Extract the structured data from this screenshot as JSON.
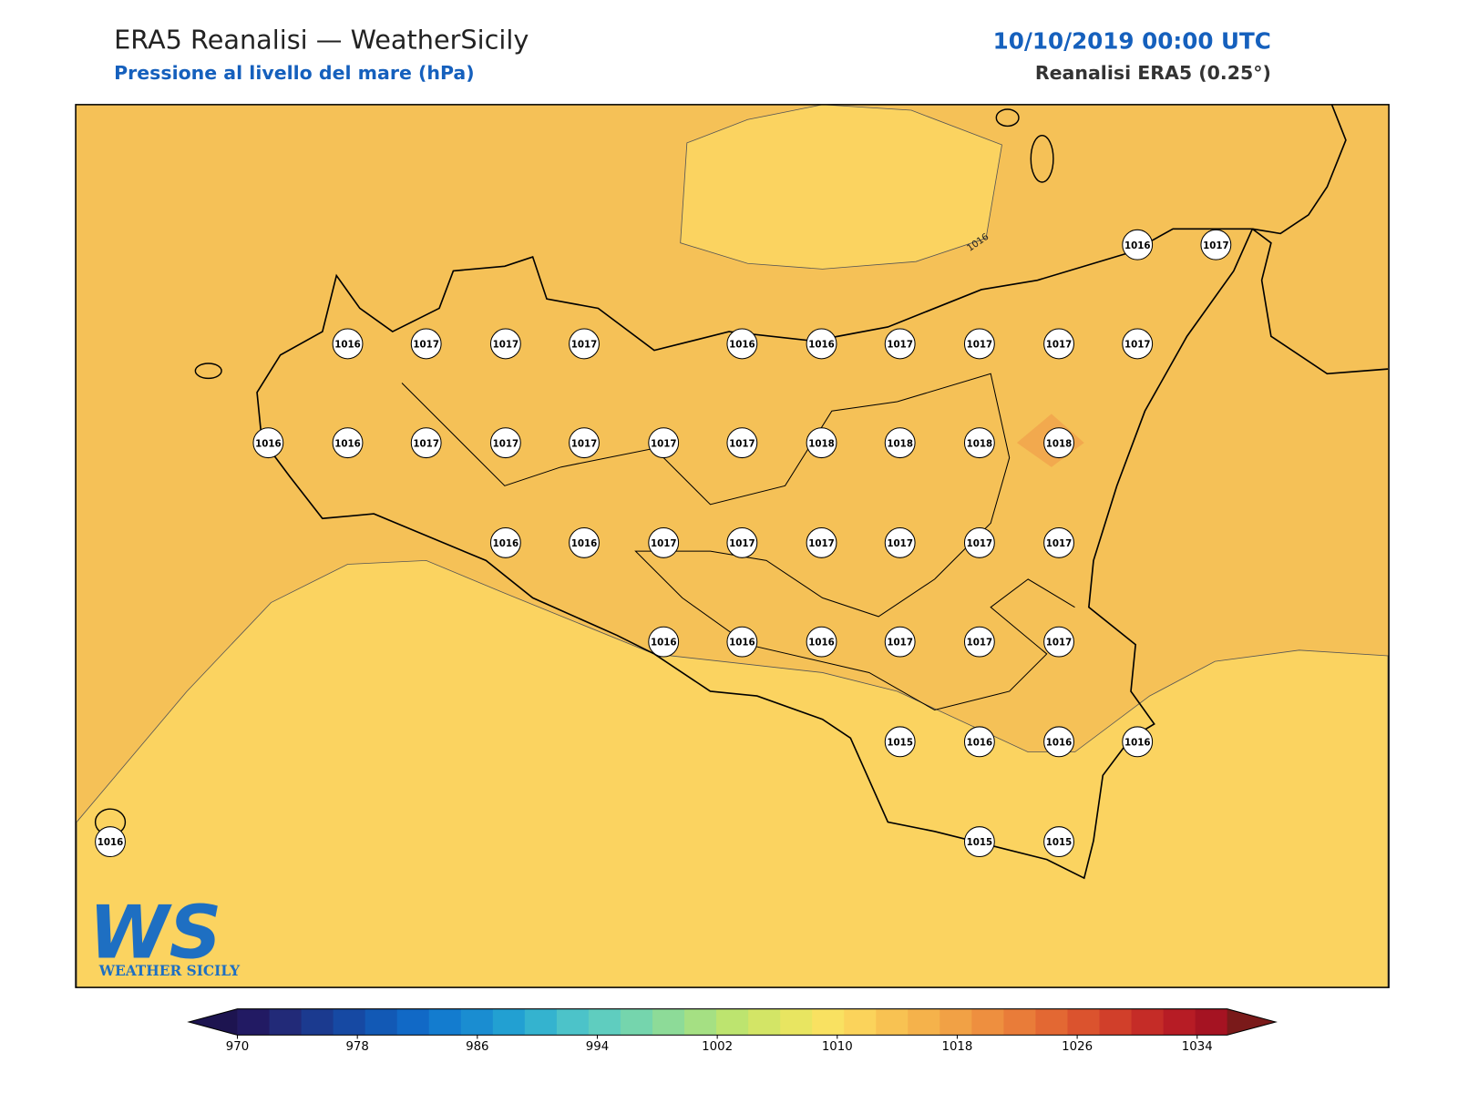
{
  "header": {
    "title": "ERA5 Reanalisi — WeatherSicily",
    "subtitle": "Pressione al livello del mare (hPa)",
    "datetime": "10/10/2019 00:00 UTC",
    "source": "Reanalisi ERA5 (0.25°)"
  },
  "map": {
    "contour_label": "1016",
    "stations": [
      1016,
      1017,
      1016,
      1017,
      1017,
      1017,
      1016,
      1016,
      1017,
      1017,
      1017,
      1017,
      1016,
      1016,
      1017,
      1017,
      1017,
      1017,
      1017,
      1018,
      1018,
      1018,
      1018,
      1016,
      1016,
      1017,
      1017,
      1017,
      1017,
      1017,
      1017,
      1016,
      1016,
      1016,
      1017,
      1017,
      1017,
      1015,
      1016,
      1016,
      1016,
      1016,
      1015,
      1015
    ]
  },
  "colorbar": {
    "ticks": [
      970,
      978,
      986,
      994,
      1002,
      1010,
      1018,
      1026,
      1034
    ],
    "lim": [
      970,
      1036
    ]
  },
  "logo": {
    "mark": "WS",
    "text": "WEATHER SICILY"
  }
}
